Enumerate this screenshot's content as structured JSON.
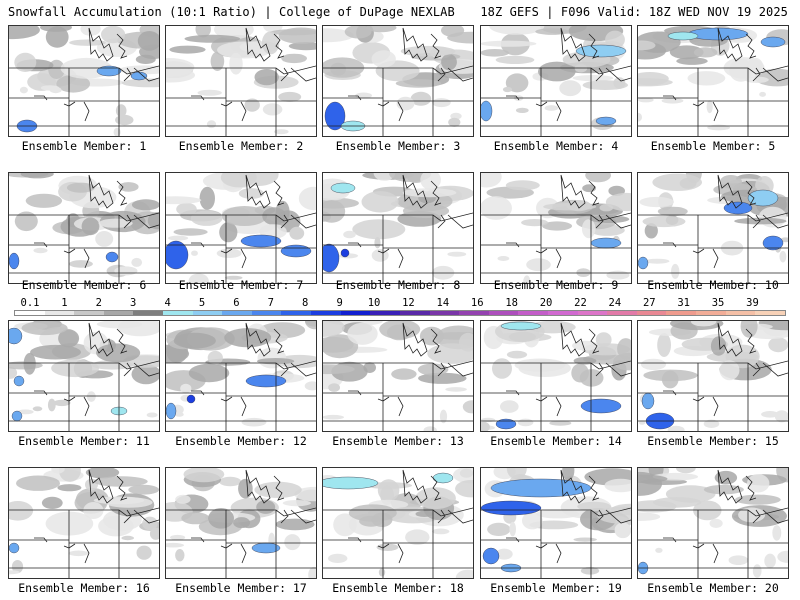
{
  "header": {
    "title": "Snowfall Accumulation (10:1 Ratio) | College of DuPage NEXLAB",
    "run_info": "18Z GEFS | F096 Valid: 18Z WED NOV 19 2025"
  },
  "legend": {
    "ticks": [
      "0.1",
      "1",
      "2",
      "3",
      "4",
      "5",
      "6",
      "7",
      "8",
      "9",
      "10",
      "12",
      "14",
      "16",
      "18",
      "20",
      "22",
      "24",
      "27",
      "31",
      "35",
      "39"
    ],
    "colors": [
      "#ffffff",
      "#e8e8e8",
      "#c8c8c8",
      "#a8a8a8",
      "#7e7e7e",
      "#9fe6ef",
      "#8ecdf2",
      "#6aa8ef",
      "#4b86ee",
      "#2f63ea",
      "#1c3ee0",
      "#1220d0",
      "#3a21b8",
      "#5a2aa8",
      "#7a37a8",
      "#9443b0",
      "#ad4fbc",
      "#c35ec8",
      "#d16ad0",
      "#dc75c8",
      "#e27aa8",
      "#e98894",
      "#ef9b8e",
      "#f2ad98",
      "#f5c0a7",
      "#f8d2b8"
    ]
  },
  "members": [
    {
      "label": "Ensemble Member: 1"
    },
    {
      "label": "Ensemble Member: 2"
    },
    {
      "label": "Ensemble Member: 3"
    },
    {
      "label": "Ensemble Member: 4"
    },
    {
      "label": "Ensemble Member: 5"
    },
    {
      "label": "Ensemble Member: 6"
    },
    {
      "label": "Ensemble Member: 7"
    },
    {
      "label": "Ensemble Member: 8"
    },
    {
      "label": "Ensemble Member: 9"
    },
    {
      "label": "Ensemble Member: 10"
    },
    {
      "label": "Ensemble Member: 11"
    },
    {
      "label": "Ensemble Member: 12"
    },
    {
      "label": "Ensemble Member: 13"
    },
    {
      "label": "Ensemble Member: 14"
    },
    {
      "label": "Ensemble Member: 15"
    },
    {
      "label": "Ensemble Member: 16"
    },
    {
      "label": "Ensemble Member: 17"
    },
    {
      "label": "Ensemble Member: 18"
    },
    {
      "label": "Ensemble Member: 19"
    },
    {
      "label": "Ensemble Member: 20"
    }
  ]
}
